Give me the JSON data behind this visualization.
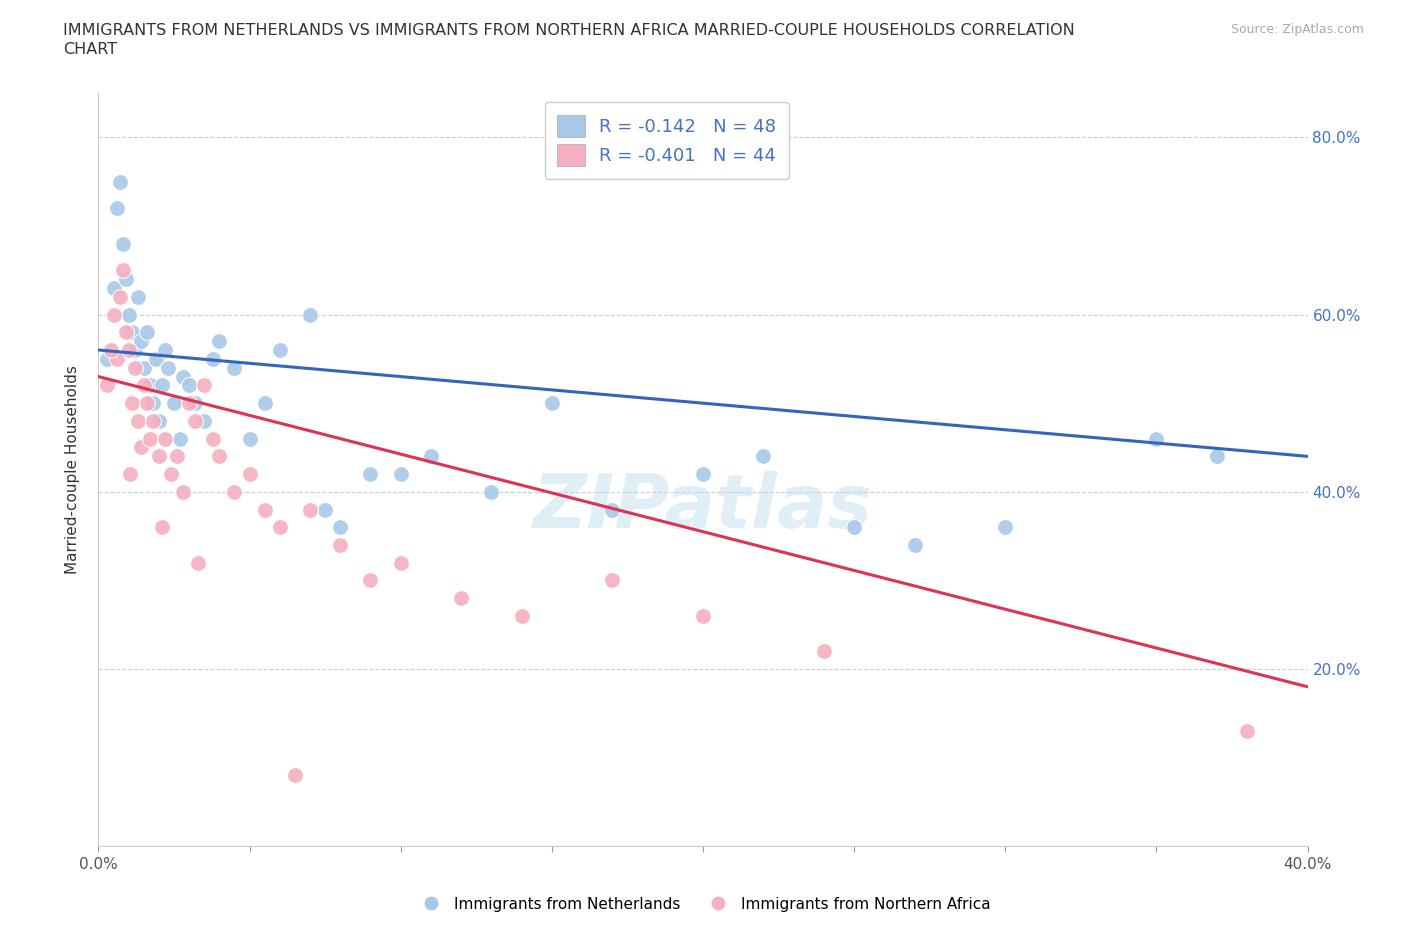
{
  "title_line1": "IMMIGRANTS FROM NETHERLANDS VS IMMIGRANTS FROM NORTHERN AFRICA MARRIED-COUPLE HOUSEHOLDS CORRELATION",
  "title_line2": "CHART",
  "source": "Source: ZipAtlas.com",
  "ylabel": "Married-couple Households",
  "xlim": [
    0.0,
    40.0
  ],
  "ylim": [
    0.0,
    85.0
  ],
  "ytick_positions": [
    20.0,
    40.0,
    60.0,
    80.0
  ],
  "ytick_labels": [
    "20.0%",
    "40.0%",
    "60.0%",
    "80.0%"
  ],
  "xtick_positions": [
    0,
    5,
    10,
    15,
    20,
    25,
    30,
    35,
    40
  ],
  "xtick_edge_labels": {
    "0": "0.0%",
    "40": "40.0%"
  },
  "blue_R": -0.142,
  "blue_N": 48,
  "pink_R": -0.401,
  "pink_N": 44,
  "blue_color": "#a8c8e8",
  "pink_color": "#f4b0c0",
  "blue_line_color": "#3366bb",
  "pink_line_color": "#dd3355",
  "watermark": "ZIPatlas",
  "blue_line_x0": 0.0,
  "blue_line_y0": 56.0,
  "blue_line_x1": 40.0,
  "blue_line_y1": 44.0,
  "pink_line_x0": 0.0,
  "pink_line_y0": 53.0,
  "pink_line_x1": 40.0,
  "pink_line_y1": 18.0,
  "blue_scatter_x": [
    0.3,
    0.5,
    0.6,
    0.7,
    0.8,
    0.9,
    1.0,
    1.1,
    1.2,
    1.3,
    1.4,
    1.5,
    1.6,
    1.7,
    1.8,
    1.9,
    2.0,
    2.1,
    2.2,
    2.3,
    2.5,
    2.7,
    2.8,
    3.0,
    3.2,
    3.5,
    3.8,
    4.0,
    4.5,
    5.0,
    5.5,
    6.0,
    7.0,
    7.5,
    8.0,
    9.0,
    10.0,
    11.0,
    13.0,
    15.0,
    17.0,
    20.0,
    22.0,
    25.0,
    27.0,
    30.0,
    35.0,
    37.0
  ],
  "blue_scatter_y": [
    55.0,
    63.0,
    72.0,
    75.0,
    68.0,
    64.0,
    60.0,
    58.0,
    56.0,
    62.0,
    57.0,
    54.0,
    58.0,
    52.0,
    50.0,
    55.0,
    48.0,
    52.0,
    56.0,
    54.0,
    50.0,
    46.0,
    53.0,
    52.0,
    50.0,
    48.0,
    55.0,
    57.0,
    54.0,
    46.0,
    50.0,
    56.0,
    60.0,
    38.0,
    36.0,
    42.0,
    42.0,
    44.0,
    40.0,
    50.0,
    38.0,
    42.0,
    44.0,
    36.0,
    34.0,
    36.0,
    46.0,
    44.0
  ],
  "pink_scatter_x": [
    0.3,
    0.5,
    0.6,
    0.7,
    0.8,
    0.9,
    1.0,
    1.1,
    1.2,
    1.3,
    1.4,
    1.5,
    1.6,
    1.7,
    1.8,
    2.0,
    2.2,
    2.4,
    2.6,
    2.8,
    3.0,
    3.2,
    3.5,
    3.8,
    4.0,
    4.5,
    5.0,
    5.5,
    6.0,
    7.0,
    8.0,
    9.0,
    10.0,
    12.0,
    14.0,
    17.0,
    20.0,
    24.0,
    38.0,
    0.4,
    1.05,
    2.1,
    3.3,
    6.5
  ],
  "pink_scatter_y": [
    52.0,
    60.0,
    55.0,
    62.0,
    65.0,
    58.0,
    56.0,
    50.0,
    54.0,
    48.0,
    45.0,
    52.0,
    50.0,
    46.0,
    48.0,
    44.0,
    46.0,
    42.0,
    44.0,
    40.0,
    50.0,
    48.0,
    52.0,
    46.0,
    44.0,
    40.0,
    42.0,
    38.0,
    36.0,
    38.0,
    34.0,
    30.0,
    32.0,
    28.0,
    26.0,
    30.0,
    26.0,
    22.0,
    13.0,
    56.0,
    42.0,
    36.0,
    32.0,
    8.0
  ]
}
